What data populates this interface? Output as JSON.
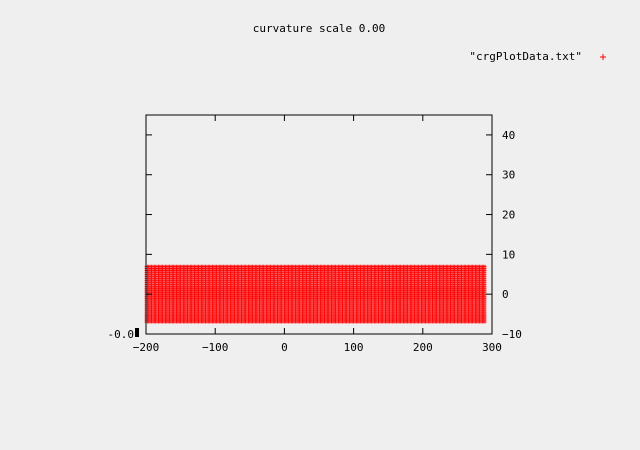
{
  "chart_data": {
    "type": "scatter",
    "title": "curvature scale 0.00",
    "legend": {
      "label": "\"crgPlotData.txt\"",
      "marker": "+",
      "placement": "top-right"
    },
    "xlim": [
      -200,
      300
    ],
    "ylim": [
      -10,
      45
    ],
    "xticks": [
      -200,
      -100,
      0,
      100,
      200,
      300
    ],
    "yticks": [
      -10,
      0,
      10,
      20,
      30,
      40
    ],
    "y_axis_side": "right",
    "left_axis_label": "-0.0",
    "point_grid": {
      "x_start": -200,
      "x_end": 290,
      "x_step": 2,
      "y_start": -7,
      "y_end": 7,
      "y_step": 0.5
    },
    "marker_color": "#ff0000",
    "grid": false
  }
}
